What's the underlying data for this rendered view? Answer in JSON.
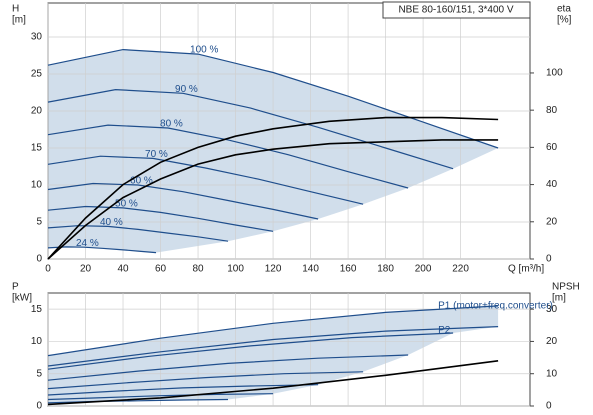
{
  "chart_data": [
    {
      "type": "line",
      "title": "NBE 80-160/151, 3*400 V",
      "ylabel": [
        "H",
        "[m]"
      ],
      "y2label": [
        "eta",
        "[%]"
      ],
      "xlabel": "Q [m³/h]",
      "xlim": [
        0,
        257
      ],
      "xticks": [
        0,
        20,
        40,
        60,
        80,
        100,
        120,
        140,
        160,
        180,
        200,
        220
      ],
      "ylim": [
        0,
        34.6
      ],
      "yticks": [
        0,
        5,
        10,
        15,
        20,
        25,
        30
      ],
      "y2lim": [
        0,
        137.6
      ],
      "y2ticks": [
        0,
        20,
        40,
        60,
        80,
        100
      ],
      "grid": true,
      "series": [
        {
          "name": "100 %",
          "color": "#1f4e8c",
          "x": [
            0,
            40,
            80,
            120,
            160,
            200,
            240
          ],
          "values": [
            26.2,
            28.3,
            27.7,
            25.2,
            22,
            18.5,
            15
          ]
        },
        {
          "name": "90 %",
          "color": "#1f4e8c",
          "x": [
            0,
            36,
            72,
            108,
            144,
            180,
            216
          ],
          "values": [
            21.2,
            22.9,
            22.4,
            20.4,
            17.8,
            15,
            12.2
          ]
        },
        {
          "name": "80 %",
          "color": "#1f4e8c",
          "x": [
            0,
            32,
            64,
            96,
            128,
            160,
            192
          ],
          "values": [
            16.8,
            18.1,
            17.7,
            16.1,
            14.1,
            11.8,
            9.6
          ]
        },
        {
          "name": "70 %",
          "color": "#1f4e8c",
          "x": [
            0,
            28,
            56,
            84,
            112,
            140,
            168
          ],
          "values": [
            12.8,
            13.9,
            13.6,
            12.3,
            10.8,
            9.1,
            7.4
          ]
        },
        {
          "name": "60 %",
          "color": "#1f4e8c",
          "x": [
            0,
            24,
            48,
            72,
            96,
            120,
            144
          ],
          "values": [
            9.4,
            10.2,
            10,
            9.1,
            7.9,
            6.7,
            5.4
          ]
        },
        {
          "name": "50 %",
          "color": "#1f4e8c",
          "x": [
            0,
            20,
            40,
            60,
            80,
            100,
            120
          ],
          "values": [
            6.6,
            7.1,
            6.9,
            6.3,
            5.5,
            4.6,
            3.75
          ]
        },
        {
          "name": "40 %",
          "color": "#1f4e8c",
          "x": [
            0,
            16,
            32,
            48,
            64,
            80,
            96
          ],
          "values": [
            4.2,
            4.5,
            4.4,
            4,
            3.5,
            3,
            2.4
          ]
        },
        {
          "name": "24 %",
          "color": "#1f4e8c",
          "x": [
            0,
            9.6,
            19.2,
            28.8,
            38.4,
            48,
            57.6
          ],
          "values": [
            1.5,
            1.63,
            1.6,
            1.45,
            1.27,
            1.07,
            0.86
          ]
        },
        {
          "axis": "y2",
          "color": "#000000",
          "x": [
            0,
            20,
            40,
            60,
            80,
            100,
            120,
            150,
            180,
            210,
            240
          ],
          "values": [
            0,
            22,
            40,
            52,
            60,
            66,
            70,
            74,
            76,
            76,
            75
          ]
        },
        {
          "axis": "y2",
          "color": "#000000",
          "x": [
            0,
            20,
            40,
            60,
            80,
            100,
            120,
            150,
            180,
            210,
            240
          ],
          "values": [
            0,
            18,
            33,
            43,
            51,
            56,
            59,
            62,
            63,
            64,
            64
          ]
        }
      ]
    },
    {
      "type": "line",
      "ylabel": [
        "P",
        "[kW]"
      ],
      "y2label": [
        "NPSH",
        "[m]"
      ],
      "xlim": [
        0,
        257
      ],
      "xticks": [
        0,
        20,
        40,
        60,
        80,
        100,
        120,
        140,
        160,
        180,
        200,
        220
      ],
      "ylim": [
        0,
        17.5
      ],
      "yticks": [
        0,
        5,
        10,
        15
      ],
      "y2lim": [
        0,
        35
      ],
      "y2ticks": [
        0,
        10,
        20,
        30
      ],
      "grid": true,
      "series": [
        {
          "name": "P1 (motor+freq.converter)",
          "color": "#1f4e8c",
          "x": [
            0,
            60,
            120,
            180,
            240
          ],
          "values": [
            7.8,
            10.5,
            12.8,
            14.5,
            15.5
          ]
        },
        {
          "name": "P2",
          "color": "#1f4e8c",
          "x": [
            0,
            60,
            120,
            180,
            240
          ],
          "values": [
            6.2,
            8.4,
            10.3,
            11.6,
            12.3
          ]
        },
        {
          "color": "#1f4e8c",
          "x": [
            0,
            54,
            108,
            162,
            216
          ],
          "values": [
            5.7,
            7.7,
            9.3,
            10.6,
            11.3
          ]
        },
        {
          "color": "#1f4e8c",
          "x": [
            0,
            48,
            96,
            144,
            192
          ],
          "values": [
            4,
            5.4,
            6.6,
            7.4,
            7.9
          ]
        },
        {
          "color": "#1f4e8c",
          "x": [
            0,
            42,
            84,
            126,
            168
          ],
          "values": [
            2.7,
            3.6,
            4.4,
            5,
            5.3
          ]
        },
        {
          "color": "#1f4e8c",
          "x": [
            0,
            36,
            72,
            108,
            144
          ],
          "values": [
            1.7,
            2.3,
            2.8,
            3.1,
            3.3
          ]
        },
        {
          "color": "#1f4e8c",
          "x": [
            0,
            30,
            60,
            90,
            120
          ],
          "values": [
            1,
            1.3,
            1.6,
            1.8,
            1.9
          ]
        },
        {
          "color": "#1f4e8c",
          "x": [
            0,
            24,
            48,
            72,
            96
          ],
          "values": [
            0.5,
            0.7,
            0.8,
            0.93,
            1
          ]
        },
        {
          "axis": "y2",
          "color": "#000000",
          "x": [
            0,
            60,
            120,
            180,
            240
          ],
          "values": [
            0.5,
            2.5,
            5.5,
            9.5,
            14
          ]
        }
      ]
    }
  ]
}
